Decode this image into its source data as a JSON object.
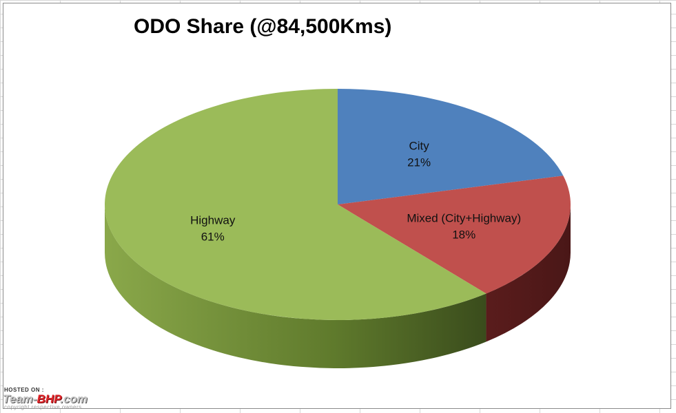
{
  "chart_data": {
    "type": "pie",
    "title": "ODO Share (@84,500Kms)",
    "slices": [
      {
        "label": "City",
        "value": 21,
        "value_label": "21%",
        "color": "#4f81bd"
      },
      {
        "label": "Mixed (City+Highway)",
        "value": 18,
        "value_label": "18%",
        "color": "#c0504d"
      },
      {
        "label": "Highway",
        "value": 61,
        "value_label": "61%",
        "color": "#9bbb59"
      }
    ],
    "style": "3d",
    "legend": "none"
  },
  "watermark": {
    "hosted_on": "HOSTED ON :",
    "site_prefix": "Team-",
    "site_accent": "BHP",
    "site_suffix": ".com",
    "copyright": "copyright respective owners"
  }
}
